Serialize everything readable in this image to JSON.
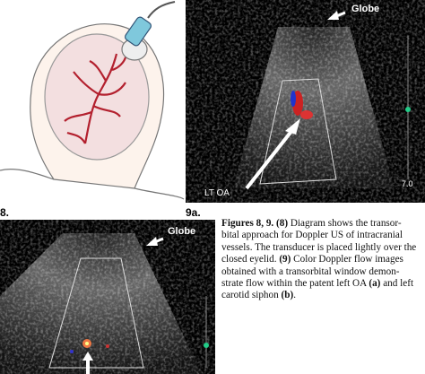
{
  "figure_labels": {
    "fig8": "8.",
    "fig9a": "9a."
  },
  "panel_9a": {
    "globe_label": "Globe",
    "side_label": "LT OA",
    "scale_label": "7.0"
  },
  "panel_9b": {
    "globe_label": "Globe"
  },
  "caption": {
    "lines": [
      [
        {
          "text": "Figures 8, 9.",
          "bold": true
        },
        {
          "text": " "
        },
        {
          "text": "(8)",
          "bold": true
        },
        {
          "text": " Diagram shows the transor-"
        }
      ],
      [
        {
          "text": "bital approach for Doppler US of intracranial"
        }
      ],
      [
        {
          "text": "vessels. The transducer is placed lightly over the"
        }
      ],
      [
        {
          "text": "closed eyelid. "
        },
        {
          "text": "(9)",
          "bold": true
        },
        {
          "text": " Color Doppler flow images"
        }
      ],
      [
        {
          "text": "obtained with a transorbital window demon-"
        }
      ],
      [
        {
          "text": "strate flow within the patent left OA "
        },
        {
          "text": "(a)",
          "bold": true
        },
        {
          "text": " and left"
        }
      ],
      [
        {
          "text": "carotid siphon "
        },
        {
          "text": "(b)",
          "bold": true
        },
        {
          "text": "."
        }
      ]
    ]
  }
}
